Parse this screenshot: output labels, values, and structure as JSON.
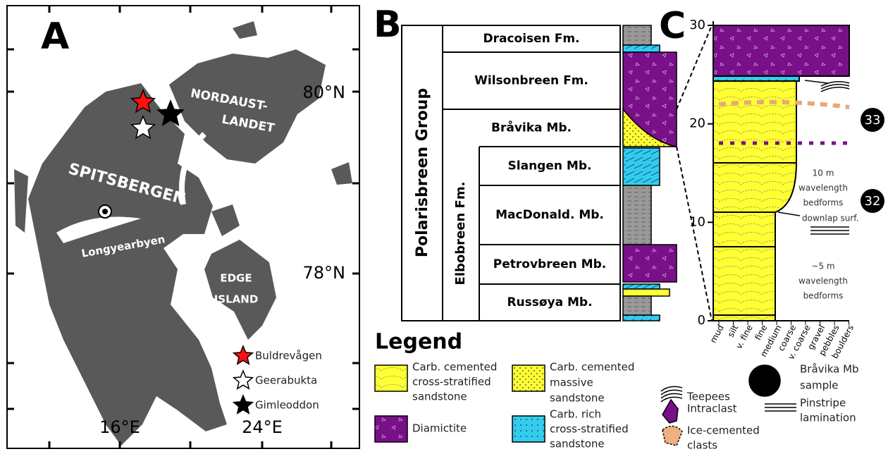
{
  "panel_a": {
    "label": "A",
    "places": {
      "nordaust": [
        "NORDAUST-",
        "LANDET"
      ],
      "spitsbergen": "SPITSBERGEN",
      "longyearbyen": "Longyearbyen",
      "edge": [
        "EDGE",
        "ISLAND"
      ]
    },
    "lat_labels": [
      "80°N",
      "78°N"
    ],
    "lon_labels": [
      "16°E",
      "24°E"
    ],
    "legend": [
      "Buldrevågen",
      "Geerabukta",
      "Gimleoddon"
    ]
  },
  "panel_b": {
    "label": "B",
    "group": "Polarisbreen Group",
    "formation": "Elbobreen Fm.",
    "units": [
      "Dracoisen Fm.",
      "Wilsonbreen Fm.",
      "Bråvika Mb.",
      "Slangen Mb.",
      "MacDonald. Mb.",
      "Petrovbreen Mb.",
      "Russøya Mb."
    ]
  },
  "panel_c": {
    "label": "C",
    "yticks": [
      0,
      10,
      20,
      30
    ],
    "grain_sizes": [
      "mud",
      "silt",
      "v. fine",
      "fine",
      "medium",
      "coarse",
      "v. coarse",
      "gravel",
      "pebbles",
      "boulders"
    ],
    "beds": [
      "33",
      "32"
    ],
    "annotations": {
      "upper_bedforms": [
        "10 m",
        "wavelength",
        "bedforms"
      ],
      "downlap": "downlap surf.",
      "lower_bedforms": [
        "~5 m",
        "wavelength",
        "bedforms"
      ]
    }
  },
  "legend": {
    "title": "Legend",
    "items": [
      [
        "Carb. cemented",
        "cross-stratified",
        "sandstone"
      ],
      [
        "Diamictite"
      ],
      [
        "Carb. cemented",
        "massive",
        "sandstone"
      ],
      [
        "Carb. rich",
        "cross-stratified",
        "sandstone"
      ],
      [
        "Teepees"
      ],
      [
        "Intraclast"
      ],
      [
        "Ice-cemented",
        "clasts"
      ],
      [
        "Bråvika Mb",
        "sample"
      ],
      [
        "Pinstripe",
        "lamination"
      ]
    ]
  }
}
